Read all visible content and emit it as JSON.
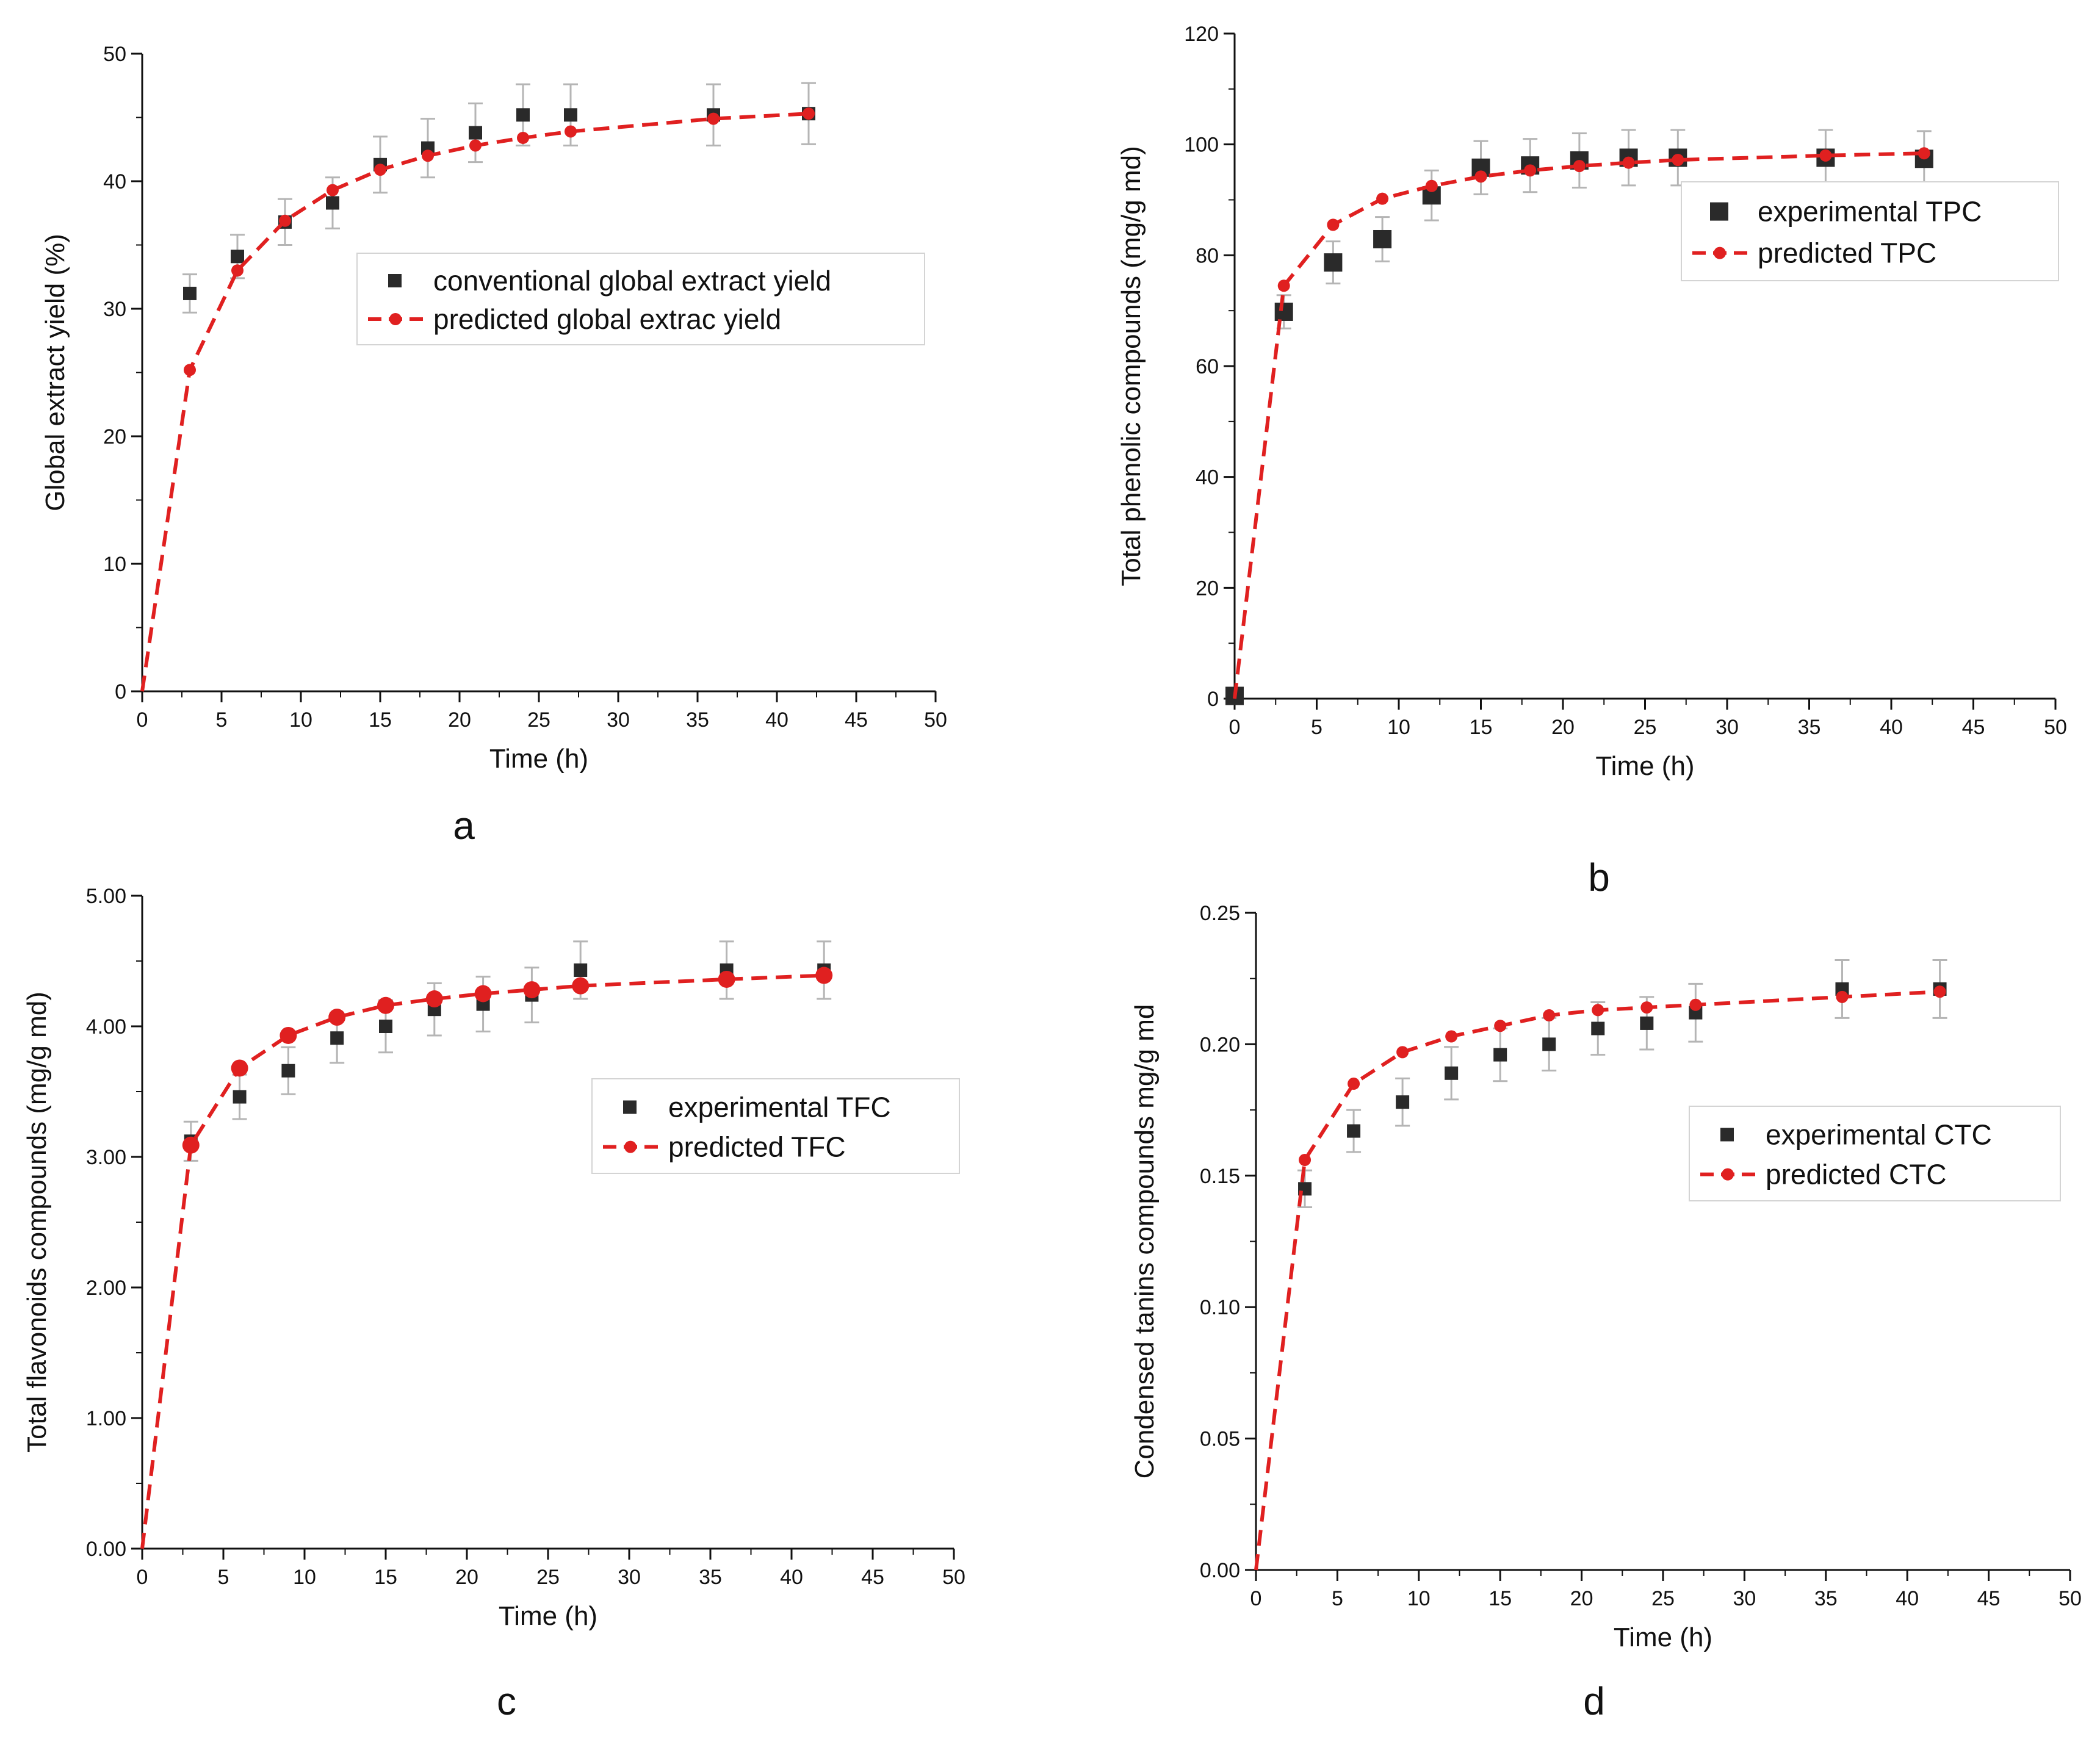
{
  "colors": {
    "experimental": "#2a2a2a",
    "predicted": "#e02020",
    "error_bar": "#b5b5b5",
    "axis": "#111111"
  },
  "chart_data": [
    {
      "type": "scatter",
      "panel_label": "a",
      "xlabel": "Time (h)",
      "ylabel": "Global extract yield (%)",
      "xlim": [
        0,
        50
      ],
      "ylim": [
        0,
        50
      ],
      "xticks": [
        "0",
        "5",
        "10",
        "15",
        "20",
        "25",
        "30",
        "35",
        "40",
        "45",
        "50"
      ],
      "yticks": [
        "0",
        "10",
        "20",
        "30",
        "40",
        "50"
      ],
      "legend_position": "center-right",
      "marker_size": "small",
      "series": [
        {
          "name": "conventional global extract yield",
          "kind": "experimental",
          "x": [
            3,
            6,
            9,
            12,
            15,
            18,
            21,
            24,
            27,
            36,
            42
          ],
          "y": [
            31.2,
            34.1,
            36.8,
            38.3,
            41.3,
            42.6,
            43.8,
            45.2,
            45.2,
            45.2,
            45.3
          ],
          "error": [
            1.5,
            1.7,
            1.8,
            2.0,
            2.2,
            2.3,
            2.3,
            2.4,
            2.4,
            2.4,
            2.4
          ]
        },
        {
          "name": "predicted global extrac yield",
          "kind": "predicted",
          "x": [
            0,
            3,
            6,
            9,
            12,
            15,
            18,
            21,
            24,
            27,
            36,
            42
          ],
          "y": [
            0,
            25.2,
            33.0,
            36.9,
            39.3,
            40.9,
            42.0,
            42.8,
            43.4,
            43.9,
            44.9,
            45.3
          ]
        }
      ]
    },
    {
      "type": "scatter",
      "panel_label": "b",
      "xlabel": "Time (h)",
      "ylabel": "Total phenolic compounds (mg/g md)",
      "xlim": [
        0,
        50
      ],
      "ylim": [
        0,
        120
      ],
      "xticks": [
        "0",
        "5",
        "10",
        "15",
        "20",
        "25",
        "30",
        "35",
        "40",
        "45",
        "50"
      ],
      "yticks": [
        "0",
        "20",
        "40",
        "60",
        "80",
        "100",
        "120"
      ],
      "legend_position": "center-right",
      "marker_size": "large",
      "series": [
        {
          "name": "experimental TPC",
          "kind": "experimental",
          "x": [
            0,
            3,
            6,
            9,
            12,
            15,
            18,
            21,
            24,
            27,
            36,
            42
          ],
          "y": [
            0.5,
            69.8,
            78.7,
            82.9,
            90.8,
            95.8,
            96.2,
            97.1,
            97.6,
            97.6,
            97.6,
            97.4
          ],
          "error": [
            0,
            3.0,
            3.8,
            4.0,
            4.5,
            4.8,
            4.8,
            4.9,
            5.0,
            5.0,
            5.0,
            5.0
          ]
        },
        {
          "name": "predicted TPC",
          "kind": "predicted",
          "x": [
            0,
            3,
            6,
            9,
            12,
            15,
            18,
            21,
            24,
            27,
            36,
            42
          ],
          "y": [
            0,
            74.5,
            85.5,
            90.2,
            92.5,
            94.2,
            95.3,
            96.1,
            96.7,
            97.2,
            98.0,
            98.4
          ]
        }
      ]
    },
    {
      "type": "scatter",
      "panel_label": "c",
      "xlabel": "Time (h)",
      "ylabel": "Total flavonoids compounds (mg/g md)",
      "xlim": [
        0,
        50
      ],
      "ylim": [
        0,
        5
      ],
      "xticks": [
        "0",
        "5",
        "10",
        "15",
        "20",
        "25",
        "30",
        "35",
        "40",
        "45",
        "50"
      ],
      "yticks": [
        "0.00",
        "1.00",
        "2.00",
        "3.00",
        "4.00",
        "5.00"
      ],
      "legend_position": "center-right",
      "marker_size": "small",
      "series": [
        {
          "name": "experimental TFC",
          "kind": "experimental",
          "x": [
            3,
            6,
            9,
            12,
            15,
            18,
            21,
            24,
            27,
            36,
            42
          ],
          "y": [
            3.12,
            3.46,
            3.66,
            3.91,
            4.0,
            4.13,
            4.17,
            4.24,
            4.43,
            4.43,
            4.43
          ],
          "error": [
            0.15,
            0.17,
            0.18,
            0.19,
            0.2,
            0.2,
            0.21,
            0.21,
            0.22,
            0.22,
            0.22
          ]
        },
        {
          "name": "predicted TFC",
          "kind": "predicted",
          "x": [
            0,
            3,
            6,
            9,
            12,
            15,
            18,
            21,
            24,
            27,
            36,
            42
          ],
          "y": [
            0,
            3.09,
            3.68,
            3.93,
            4.07,
            4.16,
            4.21,
            4.25,
            4.28,
            4.31,
            4.36,
            4.39
          ]
        }
      ]
    },
    {
      "type": "scatter",
      "panel_label": "d",
      "xlabel": "Time (h)",
      "ylabel": "Condensed tanins compounds mg/g md",
      "xlim": [
        0,
        50
      ],
      "ylim": [
        0,
        0.25
      ],
      "xticks": [
        "0",
        "5",
        "10",
        "15",
        "20",
        "25",
        "30",
        "35",
        "40",
        "45",
        "50"
      ],
      "yticks": [
        "0.00",
        "0.05",
        "0.10",
        "0.15",
        "0.20",
        "0.25"
      ],
      "legend_position": "center-right",
      "marker_size": "small",
      "series": [
        {
          "name": "experimental CTC",
          "kind": "experimental",
          "x": [
            3,
            6,
            9,
            12,
            15,
            18,
            21,
            24,
            27,
            36,
            42
          ],
          "y": [
            0.145,
            0.167,
            0.178,
            0.189,
            0.196,
            0.2,
            0.206,
            0.208,
            0.212,
            0.221,
            0.221
          ],
          "error": [
            0.007,
            0.008,
            0.009,
            0.01,
            0.01,
            0.01,
            0.01,
            0.01,
            0.011,
            0.011,
            0.011
          ]
        },
        {
          "name": "predicted CTC",
          "kind": "predicted",
          "x": [
            0,
            3,
            6,
            9,
            12,
            15,
            18,
            21,
            24,
            27,
            36,
            42
          ],
          "y": [
            0,
            0.156,
            0.185,
            0.197,
            0.203,
            0.207,
            0.211,
            0.213,
            0.214,
            0.215,
            0.218,
            0.22
          ]
        }
      ]
    }
  ]
}
